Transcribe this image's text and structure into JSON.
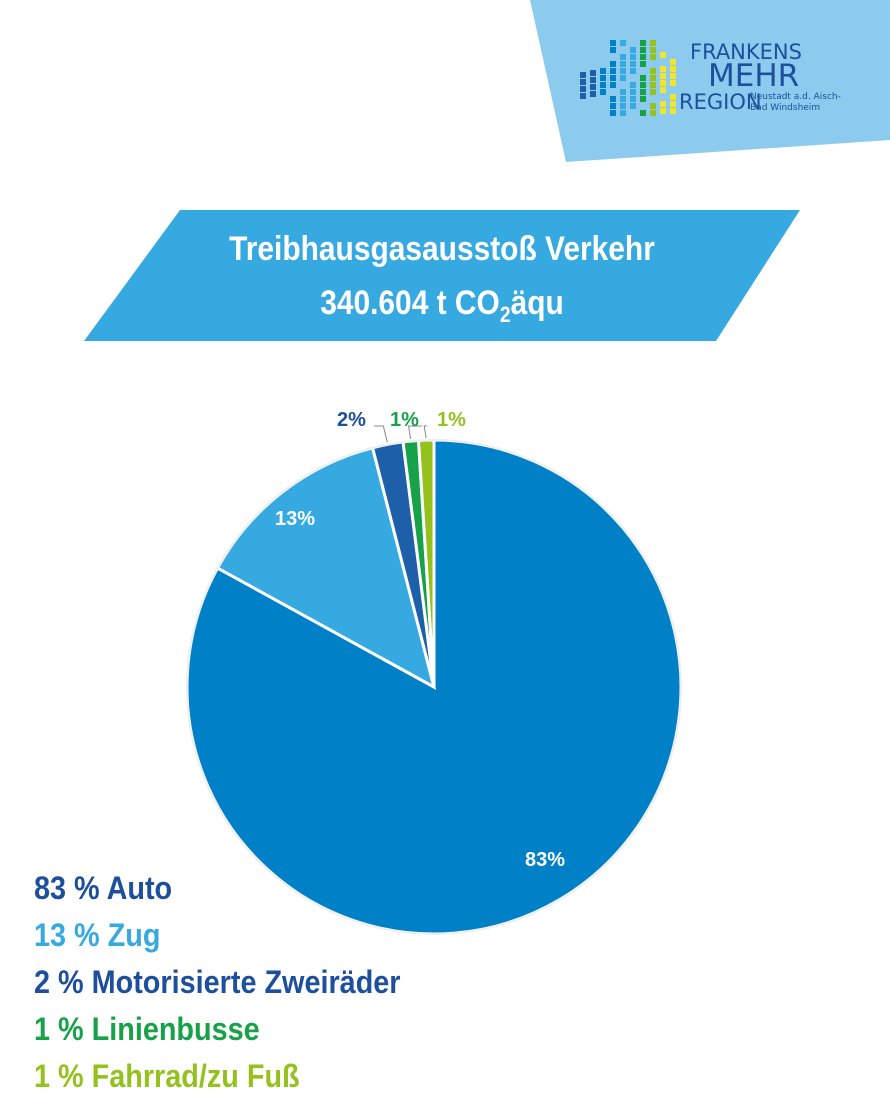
{
  "logo": {
    "line1": "FRANKENS",
    "line2": "MEHR",
    "line3": "REGION",
    "sub1": "Neustadt a.d. Aisch-",
    "sub2": "Bad Windsheim",
    "bg_color": "#8ccbee",
    "text_color": "#1d4f9c"
  },
  "banner": {
    "line1": "Treibhausgasausstoß Verkehr",
    "line2_pre": "340.604 t CO",
    "line2_sub": "2",
    "line2_post": "äqu",
    "color": "#36a9e1"
  },
  "chart_data": {
    "type": "pie",
    "start": "12 o'clock, clockwise",
    "slices": [
      {
        "name": "Auto",
        "value": 83,
        "label": "83%",
        "color": "#0080c6",
        "legend": "83 % Auto",
        "legend_color": "#1d4f9c"
      },
      {
        "name": "Zug",
        "value": 13,
        "label": "13%",
        "color": "#36a9e1",
        "legend": "13 % Zug",
        "legend_color": "#36a9e1"
      },
      {
        "name": "Motorisierte Zweiräder",
        "value": 2,
        "label": "2%",
        "color": "#1d5fa8",
        "legend": "2 % Motorisierte Zweiräder",
        "legend_color": "#1d4f9c"
      },
      {
        "name": "Linienbusse",
        "value": 1,
        "label": "1%",
        "color": "#17a24a",
        "legend": "1 % Linienbusse",
        "legend_color": "#17a24a"
      },
      {
        "name": "Fahrrad/zu Fuß",
        "value": 1,
        "label": "1%",
        "color": "#95c11f",
        "legend": "1 % Fahrrad/zu Fuß",
        "legend_color": "#95c11f"
      }
    ],
    "legend_placement": "bottom-left"
  }
}
